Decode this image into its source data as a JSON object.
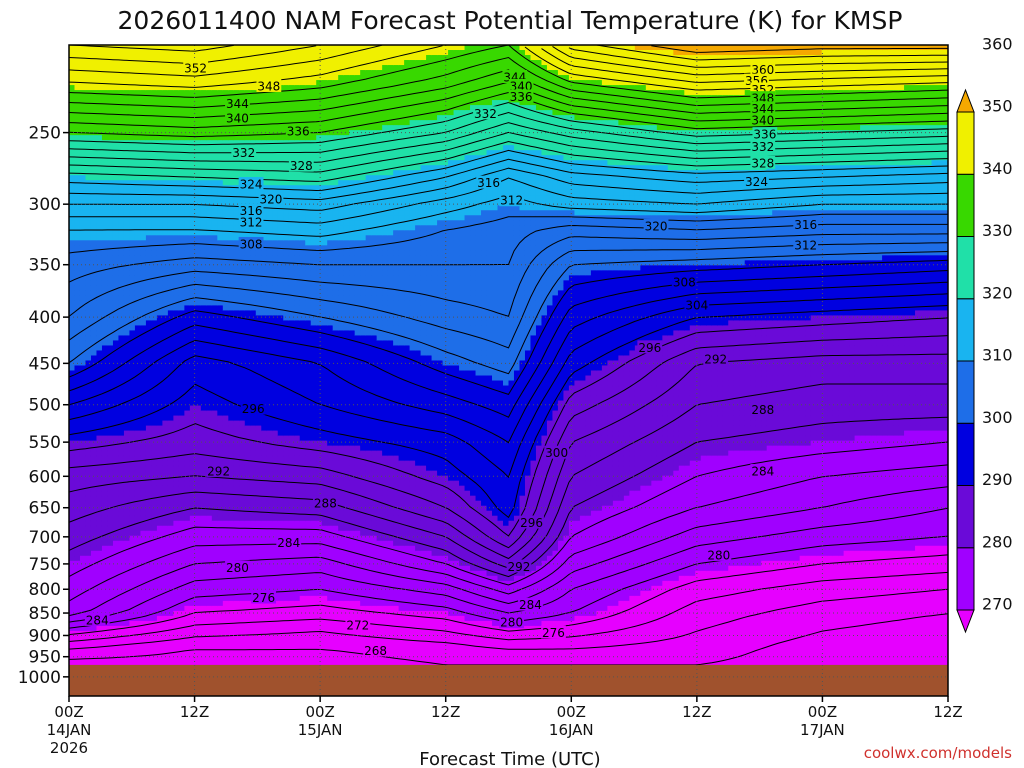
{
  "title": "2026011400 NAM Forecast Potential Temperature (K) for KMSP",
  "credit": "coolwx.com/models",
  "chart_data": {
    "type": "heatmap",
    "title": "2026011400 NAM Forecast Potential Temperature (K) for KMSP",
    "xlabel": "Forecast Time (UTC)",
    "ylabel": "",
    "xlim": [
      0,
      84
    ],
    "ylim": [
      1050,
      200
    ],
    "y_scale": "log-pressure",
    "grid": true,
    "pressure_ticks": [
      "250",
      "300",
      "350",
      "400",
      "450",
      "500",
      "550",
      "600",
      "650",
      "700",
      "750",
      "800",
      "850",
      "900",
      "950",
      "1000"
    ],
    "x_ticks": [
      {
        "h": 0,
        "l1": "00Z",
        "l2": "14JAN",
        "l3": "2026"
      },
      {
        "h": 12,
        "l1": "12Z",
        "l2": "",
        "l3": ""
      },
      {
        "h": 24,
        "l1": "00Z",
        "l2": "15JAN",
        "l3": ""
      },
      {
        "h": 36,
        "l1": "12Z",
        "l2": "",
        "l3": ""
      },
      {
        "h": 48,
        "l1": "00Z",
        "l2": "16JAN",
        "l3": ""
      },
      {
        "h": 60,
        "l1": "12Z",
        "l2": "",
        "l3": ""
      },
      {
        "h": 72,
        "l1": "00Z",
        "l2": "17JAN",
        "l3": ""
      },
      {
        "h": 84,
        "l1": "12Z",
        "l2": "",
        "l3": ""
      }
    ],
    "colorbar": {
      "labels": [
        "270",
        "280",
        "290",
        "300",
        "310",
        "320",
        "330",
        "340",
        "350",
        "360"
      ],
      "colors": [
        "#e600ff",
        "#a000ff",
        "#6a0ad8",
        "#0000e0",
        "#1e6ee8",
        "#19b4f0",
        "#20e0a8",
        "#38d800",
        "#f0f000",
        "#f5a800"
      ]
    },
    "surface_pressure_hpa": 970,
    "profiles": [
      {
        "h": 0,
        "p": [
          970,
          930,
          890,
          850,
          800,
          750,
          700,
          650,
          600,
          550,
          500,
          450,
          400,
          350,
          320,
          300,
          280,
          250,
          220,
          200
        ],
        "t": [
          267,
          270,
          275,
          281,
          283,
          285,
          287,
          289,
          291,
          295,
          300,
          306,
          310,
          313,
          316,
          320,
          325,
          336,
          346,
          352
        ]
      },
      {
        "h": 12,
        "p": [
          970,
          930,
          890,
          850,
          800,
          750,
          700,
          650,
          600,
          550,
          500,
          450,
          400,
          350,
          320,
          300,
          280,
          250,
          220,
          200
        ],
        "t": [
          267,
          268,
          271,
          274,
          277,
          280,
          283,
          286,
          290,
          293,
          295,
          297,
          303,
          311,
          316,
          320,
          326,
          337,
          347,
          353
        ]
      },
      {
        "h": 24,
        "p": [
          970,
          930,
          890,
          850,
          800,
          750,
          700,
          650,
          600,
          550,
          500,
          450,
          400,
          350,
          320,
          300,
          280,
          250,
          220,
          200
        ],
        "t": [
          267,
          268,
          270,
          273,
          276,
          279,
          283,
          287,
          291,
          295,
          298,
          300,
          306,
          312,
          317,
          321,
          327,
          336,
          345,
          350
        ]
      },
      {
        "h": 36,
        "p": [
          970,
          930,
          890,
          850,
          800,
          750,
          700,
          650,
          600,
          550,
          500,
          450,
          400,
          350,
          320,
          300,
          280,
          250,
          220,
          200
        ],
        "t": [
          268,
          269,
          272,
          275,
          279,
          284,
          288,
          292,
          295,
          297,
          301,
          305,
          309,
          312,
          314,
          317,
          322,
          332,
          341,
          346
        ]
      },
      {
        "h": 42,
        "p": [
          970,
          930,
          890,
          850,
          800,
          750,
          700,
          650,
          600,
          550,
          500,
          450,
          400,
          350,
          320,
          300,
          280,
          250,
          220,
          200
        ],
        "t": [
          268,
          270,
          274,
          278,
          283,
          289,
          294,
          297,
          298,
          300,
          303,
          307,
          310,
          312,
          313,
          315,
          318,
          328,
          338,
          344
        ]
      },
      {
        "h": 48,
        "p": [
          970,
          930,
          890,
          850,
          800,
          750,
          700,
          650,
          600,
          550,
          500,
          450,
          400,
          350,
          320,
          300,
          280,
          250,
          220,
          200
        ],
        "t": [
          268,
          270,
          273,
          276,
          278,
          281,
          284,
          286,
          288,
          290,
          293,
          297,
          301,
          306,
          311,
          317,
          321,
          331,
          344,
          353
        ]
      },
      {
        "h": 60,
        "p": [
          970,
          930,
          890,
          850,
          800,
          750,
          700,
          650,
          600,
          550,
          500,
          450,
          400,
          350,
          320,
          300,
          280,
          250,
          220,
          200
        ],
        "t": [
          268,
          269,
          270,
          271,
          273,
          276,
          279,
          282,
          284,
          286,
          288,
          290,
          296,
          305,
          312,
          318,
          323,
          335,
          348,
          358
        ]
      },
      {
        "h": 72,
        "p": [
          970,
          930,
          890,
          850,
          800,
          750,
          700,
          650,
          600,
          550,
          500,
          450,
          400,
          350,
          320,
          300,
          280,
          250,
          220,
          200
        ],
        "t": [
          267,
          267,
          268,
          269,
          271,
          274,
          277,
          280,
          282,
          285,
          287,
          289,
          295,
          304,
          311,
          316,
          322,
          334,
          347,
          357
        ]
      },
      {
        "h": 84,
        "p": [
          970,
          930,
          890,
          850,
          800,
          750,
          700,
          650,
          600,
          550,
          500,
          450,
          400,
          350,
          320,
          300,
          280,
          250,
          220,
          200
        ],
        "t": [
          266,
          266,
          267,
          268,
          270,
          273,
          276,
          278,
          281,
          284,
          287,
          289,
          294,
          303,
          311,
          316,
          321,
          333,
          346,
          357
        ]
      }
    ],
    "contour_labels": [
      {
        "text": "352",
        "h": 12.1,
        "p": 212
      },
      {
        "text": "348",
        "h": 19.1,
        "p": 222
      },
      {
        "text": "344",
        "h": 16.1,
        "p": 232
      },
      {
        "text": "340",
        "h": 16.1,
        "p": 241
      },
      {
        "text": "336",
        "h": 21.9,
        "p": 249
      },
      {
        "text": "332",
        "h": 16.7,
        "p": 263
      },
      {
        "text": "328",
        "h": 22.2,
        "p": 272
      },
      {
        "text": "324",
        "h": 17.4,
        "p": 285
      },
      {
        "text": "320",
        "h": 19.3,
        "p": 296
      },
      {
        "text": "316",
        "h": 17.4,
        "p": 305
      },
      {
        "text": "312",
        "h": 17.4,
        "p": 314
      },
      {
        "text": "308",
        "h": 17.4,
        "p": 332
      },
      {
        "text": "344",
        "h": 42.6,
        "p": 217
      },
      {
        "text": "340",
        "h": 43.2,
        "p": 222
      },
      {
        "text": "336",
        "h": 43.2,
        "p": 228
      },
      {
        "text": "332",
        "h": 39.8,
        "p": 238
      },
      {
        "text": "316",
        "h": 40.1,
        "p": 284
      },
      {
        "text": "312",
        "h": 42.3,
        "p": 297
      },
      {
        "text": "360",
        "h": 66.3,
        "p": 213
      },
      {
        "text": "356",
        "h": 65.7,
        "p": 219
      },
      {
        "text": "352",
        "h": 66.3,
        "p": 224
      },
      {
        "text": "348",
        "h": 66.3,
        "p": 229
      },
      {
        "text": "344",
        "h": 66.3,
        "p": 235
      },
      {
        "text": "340",
        "h": 66.3,
        "p": 242
      },
      {
        "text": "336",
        "h": 66.5,
        "p": 251
      },
      {
        "text": "332",
        "h": 66.3,
        "p": 259
      },
      {
        "text": "328",
        "h": 66.3,
        "p": 270
      },
      {
        "text": "324",
        "h": 65.7,
        "p": 283
      },
      {
        "text": "320",
        "h": 56.1,
        "p": 317
      },
      {
        "text": "316",
        "h": 70.4,
        "p": 316
      },
      {
        "text": "312",
        "h": 70.4,
        "p": 333
      },
      {
        "text": "308",
        "h": 58.8,
        "p": 366
      },
      {
        "text": "304",
        "h": 60.0,
        "p": 388
      },
      {
        "text": "296",
        "h": 55.5,
        "p": 432
      },
      {
        "text": "292",
        "h": 61.8,
        "p": 445
      },
      {
        "text": "288",
        "h": 66.3,
        "p": 506
      },
      {
        "text": "284",
        "h": 66.3,
        "p": 592
      },
      {
        "text": "280",
        "h": 62.1,
        "p": 733
      },
      {
        "text": "296",
        "h": 17.6,
        "p": 505
      },
      {
        "text": "292",
        "h": 14.3,
        "p": 592
      },
      {
        "text": "288",
        "h": 24.5,
        "p": 642
      },
      {
        "text": "284",
        "h": 21.0,
        "p": 710
      },
      {
        "text": "280",
        "h": 16.1,
        "p": 757
      },
      {
        "text": "276",
        "h": 18.6,
        "p": 817
      },
      {
        "text": "272",
        "h": 27.6,
        "p": 876
      },
      {
        "text": "268",
        "h": 29.3,
        "p": 935
      },
      {
        "text": "284",
        "h": 2.7,
        "p": 865
      },
      {
        "text": "300",
        "h": 46.6,
        "p": 565
      },
      {
        "text": "296",
        "h": 44.2,
        "p": 675
      },
      {
        "text": "292",
        "h": 43.0,
        "p": 755
      },
      {
        "text": "284",
        "h": 44.1,
        "p": 832
      },
      {
        "text": "280",
        "h": 42.3,
        "p": 870
      },
      {
        "text": "276",
        "h": 46.3,
        "p": 893
      }
    ]
  }
}
